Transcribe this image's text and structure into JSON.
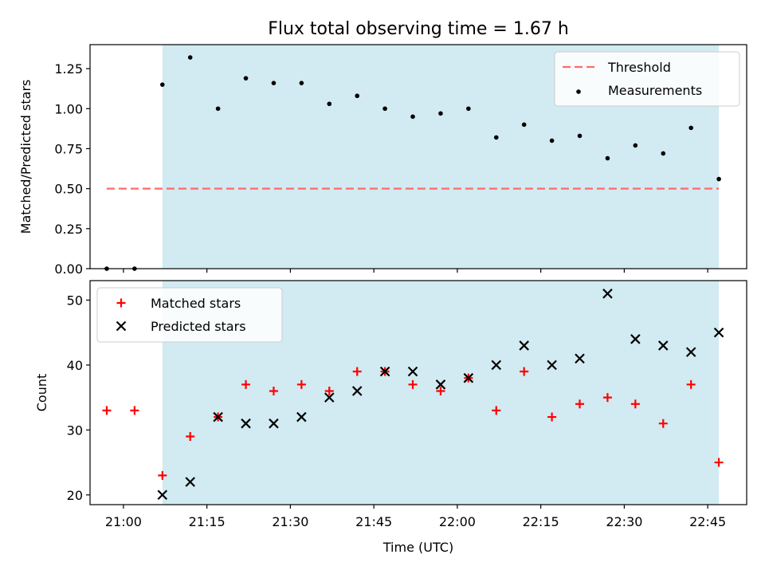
{
  "title": "Flux total observing time = 1.67 h",
  "chart_data": [
    {
      "type": "scatter",
      "ylabel": "Matched/Predicted stars",
      "xlabel": "",
      "xlim": [
        "20:54",
        "22:52"
      ],
      "ylim": [
        0,
        1.4
      ],
      "yticks": [
        "0.00",
        "0.25",
        "0.50",
        "0.75",
        "1.00",
        "1.25"
      ],
      "x_ticks": [
        "21:00",
        "21:15",
        "21:30",
        "21:45",
        "22:00",
        "22:15",
        "22:30",
        "22:45"
      ],
      "grid": false,
      "legend_position": "top-right",
      "shaded_span": {
        "start": "21:07",
        "end": "22:47",
        "color": "#add8e6"
      },
      "threshold": {
        "name": "Threshold",
        "value": 0.5,
        "start": "20:57",
        "end": "22:47",
        "color": "#ff6b6b"
      },
      "series": [
        {
          "name": "Measurements",
          "color": "#000000",
          "points": [
            [
              "20:57",
              0.0
            ],
            [
              "21:02",
              0.0
            ],
            [
              "21:07",
              1.15
            ],
            [
              "21:12",
              1.32
            ],
            [
              "21:17",
              1.0
            ],
            [
              "21:22",
              1.19
            ],
            [
              "21:27",
              1.16
            ],
            [
              "21:32",
              1.16
            ],
            [
              "21:37",
              1.03
            ],
            [
              "21:42",
              1.08
            ],
            [
              "21:47",
              1.0
            ],
            [
              "21:52",
              0.95
            ],
            [
              "21:57",
              0.97
            ],
            [
              "22:02",
              1.0
            ],
            [
              "22:07",
              0.82
            ],
            [
              "22:12",
              0.9
            ],
            [
              "22:17",
              0.8
            ],
            [
              "22:22",
              0.83
            ],
            [
              "22:27",
              0.69
            ],
            [
              "22:32",
              0.77
            ],
            [
              "22:37",
              0.72
            ],
            [
              "22:42",
              0.88
            ],
            [
              "22:47",
              0.56
            ]
          ]
        }
      ]
    },
    {
      "type": "scatter",
      "ylabel": "Count",
      "xlabel": "Time (UTC)",
      "xlim": [
        "20:54",
        "22:52"
      ],
      "ylim": [
        18.5,
        53
      ],
      "yticks": [
        "20",
        "30",
        "40",
        "50"
      ],
      "x_ticks": [
        "21:00",
        "21:15",
        "21:30",
        "21:45",
        "22:00",
        "22:15",
        "22:30",
        "22:45"
      ],
      "grid": false,
      "legend_position": "top-left",
      "shaded_span": {
        "start": "21:07",
        "end": "22:47",
        "color": "#add8e6"
      },
      "series": [
        {
          "name": "Matched stars",
          "marker": "plus",
          "color": "#ff0000",
          "points": [
            [
              "20:57",
              33
            ],
            [
              "21:02",
              33
            ],
            [
              "21:07",
              23
            ],
            [
              "21:12",
              29
            ],
            [
              "21:17",
              32
            ],
            [
              "21:22",
              37
            ],
            [
              "21:27",
              36
            ],
            [
              "21:32",
              37
            ],
            [
              "21:37",
              36
            ],
            [
              "21:42",
              39
            ],
            [
              "21:47",
              39
            ],
            [
              "21:52",
              37
            ],
            [
              "21:57",
              36
            ],
            [
              "22:02",
              38
            ],
            [
              "22:07",
              33
            ],
            [
              "22:12",
              39
            ],
            [
              "22:17",
              32
            ],
            [
              "22:22",
              34
            ],
            [
              "22:27",
              35
            ],
            [
              "22:32",
              34
            ],
            [
              "22:37",
              31
            ],
            [
              "22:42",
              37
            ],
            [
              "22:47",
              25
            ]
          ]
        },
        {
          "name": "Predicted stars",
          "marker": "x",
          "color": "#000000",
          "points": [
            [
              "21:07",
              20
            ],
            [
              "21:12",
              22
            ],
            [
              "21:17",
              32
            ],
            [
              "21:22",
              31
            ],
            [
              "21:27",
              31
            ],
            [
              "21:32",
              32
            ],
            [
              "21:37",
              35
            ],
            [
              "21:42",
              36
            ],
            [
              "21:47",
              39
            ],
            [
              "21:52",
              39
            ],
            [
              "21:57",
              37
            ],
            [
              "22:02",
              38
            ],
            [
              "22:07",
              40
            ],
            [
              "22:12",
              43
            ],
            [
              "22:17",
              40
            ],
            [
              "22:22",
              41
            ],
            [
              "22:27",
              51
            ],
            [
              "22:32",
              44
            ],
            [
              "22:37",
              43
            ],
            [
              "22:42",
              42
            ],
            [
              "22:47",
              45
            ]
          ]
        }
      ]
    }
  ]
}
